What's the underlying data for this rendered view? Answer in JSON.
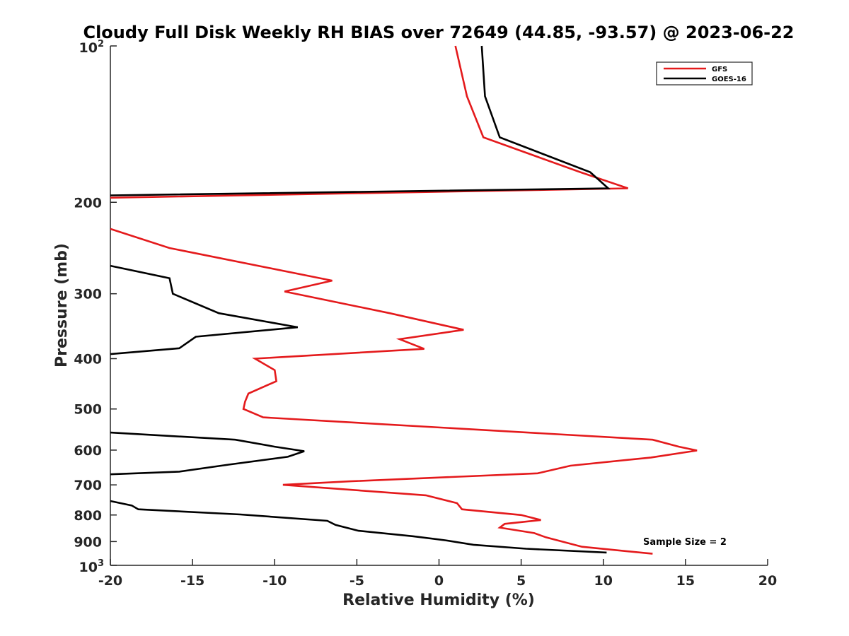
{
  "chart_data": {
    "type": "line",
    "title": "Cloudy Full Disk Weekly RH BIAS over 72649 (44.85, -93.57) @ 2023-06-22",
    "xlabel": "Relative Humidity (%)",
    "ylabel": "Pressure (mb)",
    "xlim": [
      -20,
      20
    ],
    "ylim": [
      100,
      1000
    ],
    "yscale": "log",
    "y_reversed": true,
    "grid": false,
    "legend_position": "top-right",
    "x_ticks": [
      -20,
      -15,
      -10,
      -5,
      0,
      5,
      10,
      15,
      20
    ],
    "x_tick_labels": [
      "-20",
      "-15",
      "-10",
      "-5",
      "0",
      "5",
      "10",
      "15",
      "20"
    ],
    "y_ticks": [
      100,
      200,
      300,
      400,
      500,
      600,
      700,
      800,
      900,
      1000
    ],
    "y_tick_labels": [
      "10^2",
      "200",
      "300",
      "400",
      "500",
      "600",
      "700",
      "800",
      "900",
      "10^3"
    ],
    "annotation": "Sample Size = 2",
    "series": [
      {
        "name": "GFS",
        "color": "#e41a1c",
        "segments": [
          [
            [
              1.0,
              100
            ],
            [
              1.7,
              125
            ],
            [
              2.7,
              150
            ],
            [
              8.6,
              175
            ],
            [
              11.5,
              188
            ],
            [
              -20,
              196
            ]
          ],
          [
            [
              -20,
              225
            ],
            [
              -16.4,
              245
            ],
            [
              -6.5,
              283
            ],
            [
              -9.4,
              297
            ],
            [
              -3.0,
              327
            ],
            [
              1.5,
              352
            ],
            [
              -2.4,
              367
            ],
            [
              -0.9,
              383
            ],
            [
              -11.2,
              400
            ],
            [
              -10.0,
              421
            ],
            [
              -9.9,
              442
            ],
            [
              -11.6,
              467
            ],
            [
              -11.8,
              484
            ],
            [
              -11.9,
              500
            ],
            [
              -10.7,
              519
            ],
            [
              13.0,
              573
            ],
            [
              14.6,
              591
            ],
            [
              15.7,
              601
            ],
            [
              12.9,
              620
            ],
            [
              8.0,
              643
            ],
            [
              6.0,
              665
            ],
            [
              -5.4,
              689
            ],
            [
              -9.5,
              700
            ],
            [
              -0.8,
              733
            ],
            [
              1.1,
              759
            ],
            [
              1.4,
              780
            ],
            [
              5.0,
              800
            ],
            [
              6.2,
              818
            ],
            [
              4.0,
              832
            ],
            [
              3.7,
              846
            ],
            [
              5.8,
              867
            ],
            [
              6.5,
              883
            ],
            [
              8.7,
              921
            ],
            [
              13.0,
              950
            ]
          ]
        ]
      },
      {
        "name": "GOES-16",
        "color": "#000000",
        "segments": [
          [
            [
              2.6,
              100
            ],
            [
              2.8,
              125
            ],
            [
              3.7,
              150
            ],
            [
              9.2,
              175
            ],
            [
              10.3,
              188
            ],
            [
              -20,
              194
            ]
          ],
          [
            [
              -20,
              265
            ],
            [
              -16.4,
              280
            ],
            [
              -16.2,
              300
            ],
            [
              -13.4,
              327
            ],
            [
              -8.6,
              348
            ],
            [
              -14.8,
              363
            ],
            [
              -15.8,
              382
            ],
            [
              -20,
              392
            ]
          ],
          [
            [
              -20,
              555
            ],
            [
              -12.4,
              573
            ],
            [
              -10.0,
              591
            ],
            [
              -8.2,
              603
            ],
            [
              -9.2,
              618
            ],
            [
              -12.8,
              640
            ],
            [
              -15.8,
              660
            ],
            [
              -20,
              668
            ]
          ],
          [
            [
              -20,
              752
            ],
            [
              -18.7,
              767
            ],
            [
              -18.3,
              780
            ],
            [
              -12.1,
              798
            ],
            [
              -6.8,
              821
            ],
            [
              -6.3,
              836
            ],
            [
              -4.9,
              858
            ],
            [
              -1.6,
              879
            ],
            [
              0.4,
              895
            ],
            [
              2.1,
              913
            ],
            [
              5.3,
              929
            ],
            [
              10.2,
              945
            ]
          ]
        ]
      }
    ]
  }
}
